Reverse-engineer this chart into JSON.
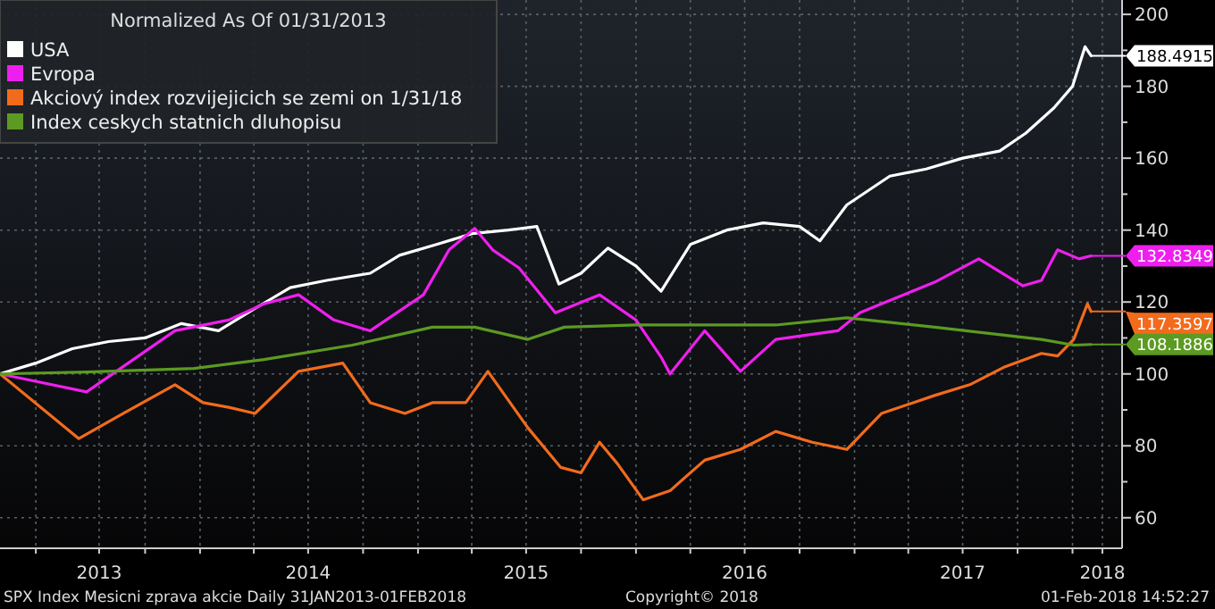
{
  "chart_data": {
    "type": "line",
    "legend_title": "Normalized As Of 01/31/2013",
    "legend": "top left",
    "grid": true,
    "line_style": "solid",
    "marker": "none",
    "xlim": [
      "2013-01-31",
      "2018-03-25"
    ],
    "xticks": [
      {
        "value": "2013-04-01",
        "label": null
      },
      {
        "value": "2013-07-16",
        "label": "2013"
      },
      {
        "value": "2013-10-01",
        "label": null
      },
      {
        "value": "2014-01-01",
        "label": null
      },
      {
        "value": "2014-04-01",
        "label": null
      },
      {
        "value": "2014-07-01",
        "label": "2014"
      },
      {
        "value": "2014-10-01",
        "label": null
      },
      {
        "value": "2015-01-01",
        "label": null
      },
      {
        "value": "2015-04-01",
        "label": null
      },
      {
        "value": "2015-07-01",
        "label": "2015"
      },
      {
        "value": "2015-10-01",
        "label": null
      },
      {
        "value": "2016-01-01",
        "label": null
      },
      {
        "value": "2016-04-01",
        "label": null
      },
      {
        "value": "2016-07-01",
        "label": "2016"
      },
      {
        "value": "2016-10-01",
        "label": null
      },
      {
        "value": "2017-01-01",
        "label": null
      },
      {
        "value": "2017-04-01",
        "label": null
      },
      {
        "value": "2017-07-01",
        "label": "2017"
      },
      {
        "value": "2017-10-01",
        "label": null
      },
      {
        "value": "2018-01-01",
        "label": null
      },
      {
        "value": "2018-02-20",
        "label": "2018"
      }
    ],
    "ylim": [
      51.5,
      204
    ],
    "yticks": [
      60,
      {
        "value": 70,
        "label": null
      },
      80,
      {
        "value": 90,
        "label": null
      },
      100,
      {
        "value": 110,
        "label": null
      },
      120,
      {
        "value": 130,
        "label": null
      },
      140,
      {
        "value": 150,
        "label": null
      },
      160,
      {
        "value": 170,
        "label": null
      },
      180,
      {
        "value": 190,
        "label": null
      },
      200
    ],
    "annotations": [
      "SPX Index Mesicni zprava akcie  Daily 31JAN2013-01FEB2018",
      "Copyright© 2018",
      "01-Feb-2018 14:52:27"
    ],
    "series": [
      {
        "name": "USA",
        "color": "#ffffff",
        "x": [
          "2013-01-31",
          "2013-04-01",
          "2013-06-01",
          "2013-08-01",
          "2013-10-01",
          "2013-12-01",
          "2014-02-01",
          "2014-04-01",
          "2014-06-01",
          "2014-08-01",
          "2014-10-13",
          "2014-12-01",
          "2015-02-01",
          "2015-04-01",
          "2015-06-01",
          "2015-07-19",
          "2015-08-25",
          "2015-10-01",
          "2015-11-15",
          "2016-01-01",
          "2016-02-12",
          "2016-04-01",
          "2016-06-01",
          "2016-08-01",
          "2016-10-01",
          "2016-11-04",
          "2016-12-19",
          "2017-03-01",
          "2017-05-01",
          "2017-07-01",
          "2017-09-01",
          "2017-10-15",
          "2017-12-01",
          "2018-01-01",
          "2018-01-22",
          "2018-02-01"
        ],
        "values": [
          100,
          103,
          107,
          109,
          110,
          114,
          112,
          118,
          124,
          126,
          128,
          133,
          136,
          139,
          140,
          141,
          125,
          128,
          135,
          130,
          123,
          136,
          140,
          142,
          141,
          137,
          147,
          155,
          157,
          160,
          162,
          167,
          174,
          180,
          191,
          188.4915
        ],
        "value_labels": [
          null,
          null,
          null,
          null,
          null,
          null,
          null,
          null,
          null,
          null,
          null,
          null,
          null,
          null,
          null,
          null,
          null,
          null,
          null,
          null,
          null,
          null,
          null,
          null,
          null,
          null,
          null,
          null,
          null,
          null,
          null,
          null,
          null,
          null,
          null,
          "188.4915"
        ]
      },
      {
        "name": "Evropa",
        "color": "#ee1fee",
        "x": [
          "2013-01-31",
          "2013-06-25",
          "2013-11-20",
          "2014-02-18",
          "2014-04-18",
          "2014-06-15",
          "2014-08-13",
          "2014-10-13",
          "2015-01-10",
          "2015-02-22",
          "2015-04-06",
          "2015-05-06",
          "2015-06-19",
          "2015-08-19",
          "2015-11-01",
          "2016-01-01",
          "2016-02-12",
          "2016-02-27",
          "2016-04-25",
          "2016-06-24",
          "2016-08-22",
          "2016-12-04",
          "2017-01-10",
          "2017-02-15",
          "2017-05-15",
          "2017-07-28",
          "2017-10-10",
          "2017-11-10",
          "2017-12-07",
          "2018-01-12",
          "2018-02-01"
        ],
        "values": [
          100,
          95,
          112,
          115,
          119.5,
          122,
          115,
          112,
          122,
          134.5,
          140.5,
          134.5,
          129.5,
          117,
          122,
          115,
          104.7,
          100,
          112,
          100.7,
          109.6,
          112,
          117,
          119.5,
          125.5,
          132,
          124.5,
          126,
          134.5,
          132,
          132.8349
        ],
        "value_labels": [
          null,
          null,
          null,
          null,
          null,
          null,
          null,
          null,
          null,
          null,
          null,
          null,
          null,
          null,
          null,
          null,
          null,
          null,
          null,
          null,
          null,
          null,
          null,
          null,
          null,
          null,
          null,
          null,
          null,
          null,
          "132.8349"
        ]
      },
      {
        "name": "Akciový index rozvijejicich se zemi on 1/31/18",
        "color": "#f26b1d",
        "x": [
          "2013-01-31",
          "2013-06-12",
          "2013-08-25",
          "2013-11-20",
          "2014-01-06",
          "2014-02-18",
          "2014-04-03",
          "2014-06-15",
          "2014-08-28",
          "2014-10-13",
          "2014-12-10",
          "2015-01-25",
          "2015-03-22",
          "2015-04-28",
          "2015-07-04",
          "2015-08-28",
          "2015-10-01",
          "2015-11-01",
          "2015-12-01",
          "2016-01-13",
          "2016-02-27",
          "2016-04-25",
          "2016-06-24",
          "2016-08-22",
          "2016-10-22",
          "2016-12-19",
          "2017-02-15",
          "2017-05-15",
          "2017-07-13",
          "2017-09-10",
          "2017-11-10",
          "2017-12-07",
          "2018-01-03",
          "2018-01-26",
          "2018-02-01"
        ],
        "values": [
          100,
          82,
          89,
          97,
          92,
          90.7,
          89,
          100.7,
          103,
          92,
          89,
          92,
          92,
          100.7,
          85,
          74,
          72.5,
          81,
          75,
          65,
          67.5,
          76,
          79,
          84,
          81,
          79,
          89,
          94,
          97,
          102,
          105.7,
          105,
          109.6,
          119.5,
          117.3597
        ],
        "value_labels": [
          null,
          null,
          null,
          null,
          null,
          null,
          null,
          null,
          null,
          null,
          null,
          null,
          null,
          null,
          null,
          null,
          null,
          null,
          null,
          null,
          null,
          null,
          null,
          null,
          null,
          null,
          null,
          null,
          null,
          null,
          null,
          null,
          null,
          null,
          "117.3597"
        ]
      },
      {
        "name": "Index ceskych statnich dluhopisu",
        "color": "#5c9a22",
        "x": [
          "2013-01-31",
          "2013-06-25",
          "2013-12-22",
          "2014-04-18",
          "2014-09-13",
          "2015-01-25",
          "2015-04-06",
          "2015-07-04",
          "2015-09-03",
          "2016-01-01",
          "2016-08-22",
          "2016-12-19",
          "2017-05-15",
          "2017-11-10",
          "2018-01-03",
          "2018-02-01"
        ],
        "values": [
          100,
          100.5,
          101.5,
          104,
          108,
          113,
          113,
          109.6,
          113,
          113.6,
          113.6,
          115.6,
          113,
          109.6,
          108,
          108.1886
        ],
        "value_labels": [
          null,
          null,
          null,
          null,
          null,
          null,
          null,
          null,
          null,
          null,
          null,
          null,
          null,
          null,
          null,
          "108.1886"
        ]
      }
    ]
  }
}
